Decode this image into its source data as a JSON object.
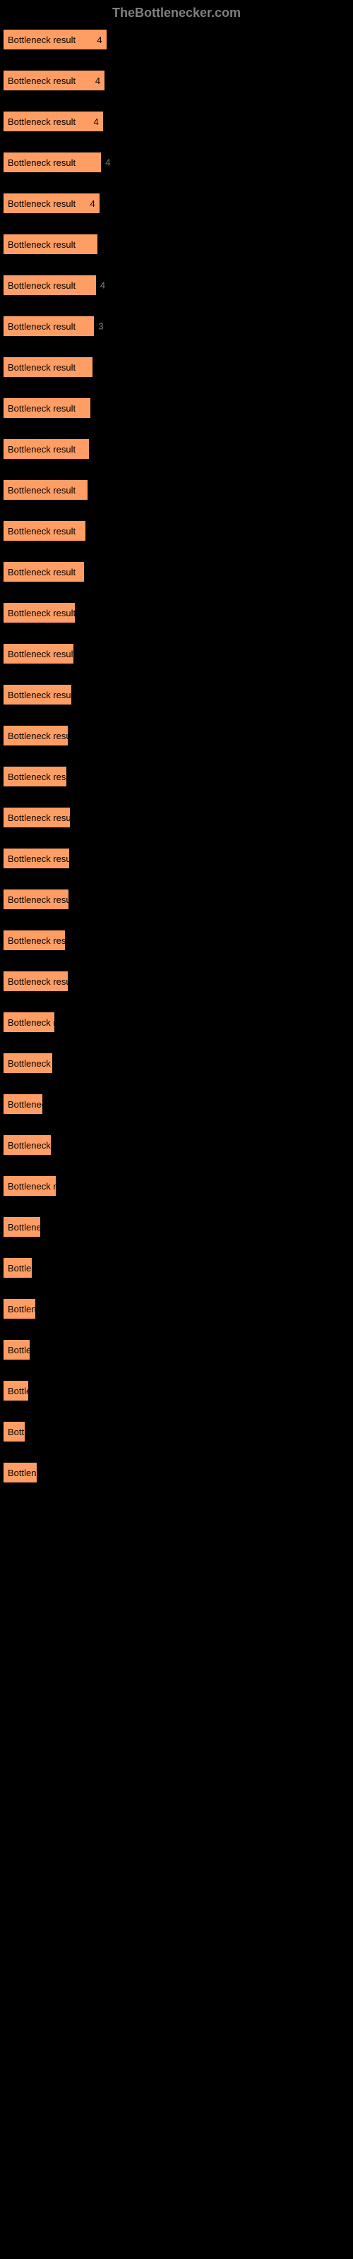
{
  "header": {
    "title": "TheBottlenecker.com"
  },
  "chart": {
    "type": "bar",
    "background_color": "#000000",
    "bar_color": "#ff9e64",
    "bar_border_color": "#000000",
    "bar_text_color": "#000000",
    "outside_value_color": "#808080",
    "max_bar_width_pct": 32,
    "bar_label": "Bottleneck result",
    "bars": [
      {
        "width_pct": 30.0,
        "value": "4",
        "value_inside": true
      },
      {
        "width_pct": 29.5,
        "value": "4",
        "value_inside": true
      },
      {
        "width_pct": 29.0,
        "value": "4",
        "value_inside": true
      },
      {
        "width_pct": 28.5,
        "value": "4",
        "value_inside": false
      },
      {
        "width_pct": 28.0,
        "value": "4",
        "value_inside": true
      },
      {
        "width_pct": 27.5,
        "value": "",
        "value_inside": false
      },
      {
        "width_pct": 27.0,
        "value": "4",
        "value_inside": false
      },
      {
        "width_pct": 26.5,
        "value": "3",
        "value_inside": false
      },
      {
        "width_pct": 26.0,
        "value": "",
        "value_inside": false
      },
      {
        "width_pct": 25.5,
        "value": "",
        "value_inside": false
      },
      {
        "width_pct": 25.0,
        "value": "",
        "value_inside": false
      },
      {
        "width_pct": 24.5,
        "value": "",
        "value_inside": false
      },
      {
        "width_pct": 24.0,
        "value": "",
        "value_inside": false
      },
      {
        "width_pct": 23.5,
        "value": "",
        "value_inside": false
      },
      {
        "width_pct": 21.0,
        "value": "",
        "value_inside": false
      },
      {
        "width_pct": 20.5,
        "value": "",
        "value_inside": false
      },
      {
        "width_pct": 20.0,
        "value": "",
        "value_inside": false
      },
      {
        "width_pct": 19.0,
        "value": "",
        "value_inside": false
      },
      {
        "width_pct": 18.5,
        "value": "",
        "value_inside": false
      },
      {
        "width_pct": 19.5,
        "value": "",
        "value_inside": false
      },
      {
        "width_pct": 19.3,
        "value": "",
        "value_inside": false
      },
      {
        "width_pct": 19.2,
        "value": "",
        "value_inside": false
      },
      {
        "width_pct": 18.0,
        "value": "",
        "value_inside": false
      },
      {
        "width_pct": 19.0,
        "value": "",
        "value_inside": false
      },
      {
        "width_pct": 15.0,
        "value": "",
        "value_inside": false
      },
      {
        "width_pct": 14.5,
        "value": "",
        "value_inside": false
      },
      {
        "width_pct": 11.5,
        "value": "",
        "value_inside": false
      },
      {
        "width_pct": 14.0,
        "value": "",
        "value_inside": false
      },
      {
        "width_pct": 15.5,
        "value": "",
        "value_inside": false
      },
      {
        "width_pct": 11.0,
        "value": "",
        "value_inside": false
      },
      {
        "width_pct": 8.5,
        "value": "",
        "value_inside": false
      },
      {
        "width_pct": 9.5,
        "value": "",
        "value_inside": false
      },
      {
        "width_pct": 8.0,
        "value": "",
        "value_inside": false
      },
      {
        "width_pct": 7.5,
        "value": "",
        "value_inside": false
      },
      {
        "width_pct": 6.5,
        "value": "",
        "value_inside": false
      },
      {
        "width_pct": 10.0,
        "value": "",
        "value_inside": false
      }
    ]
  }
}
